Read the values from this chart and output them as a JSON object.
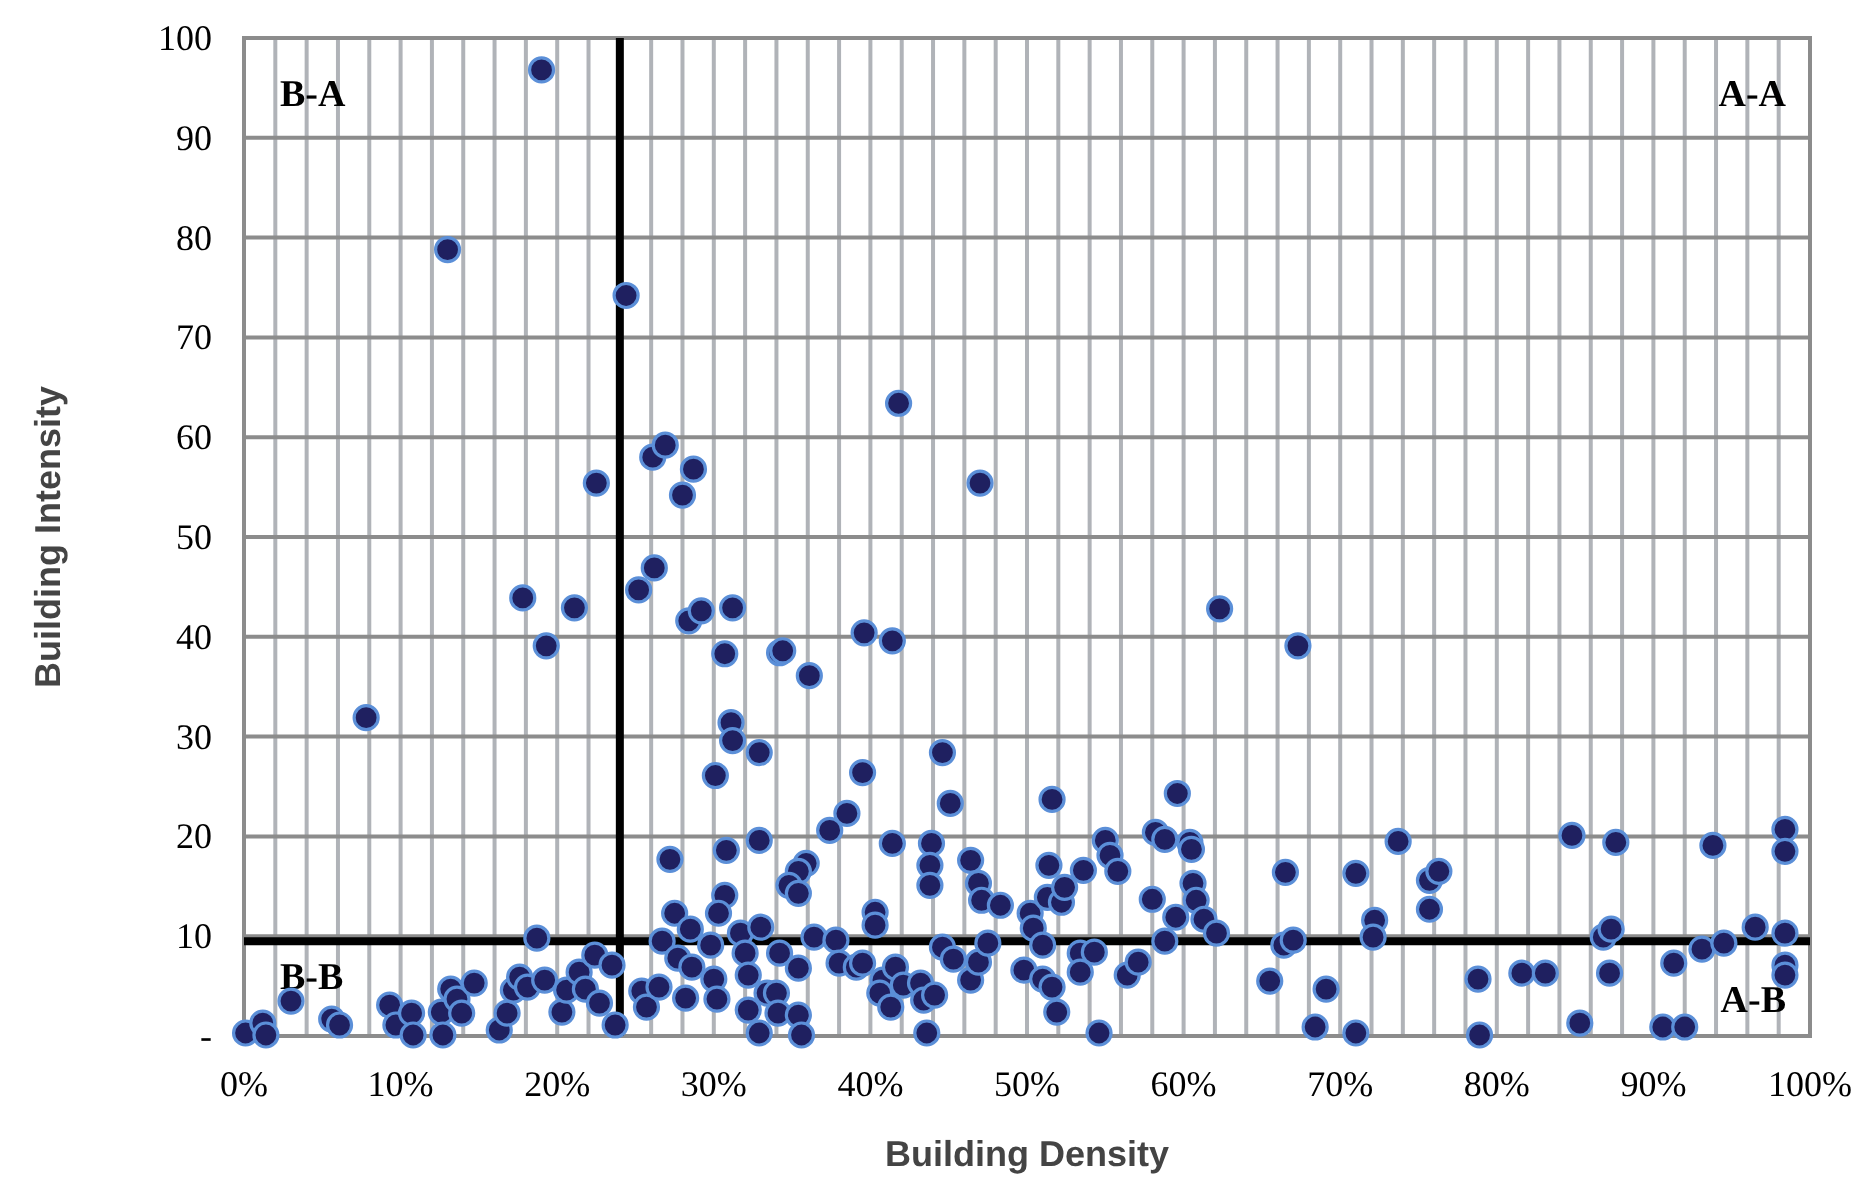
{
  "chart_data": {
    "type": "scatter",
    "xlabel": "Building Density",
    "ylabel": "Building Intensity",
    "xlim": [
      0,
      100
    ],
    "ylim": [
      0,
      100
    ],
    "xticks": [
      {
        "value": 0,
        "label": "0%"
      },
      {
        "value": 2,
        "label": null
      },
      {
        "value": 4,
        "label": null
      },
      {
        "value": 6,
        "label": null
      },
      {
        "value": 8,
        "label": null
      },
      {
        "value": 10,
        "label": "10%"
      },
      {
        "value": 12,
        "label": null
      },
      {
        "value": 14,
        "label": null
      },
      {
        "value": 16,
        "label": null
      },
      {
        "value": 18,
        "label": null
      },
      {
        "value": 20,
        "label": "20%"
      },
      {
        "value": 22,
        "label": null
      },
      {
        "value": 24,
        "label": null
      },
      {
        "value": 26,
        "label": null
      },
      {
        "value": 28,
        "label": null
      },
      {
        "value": 30,
        "label": "30%"
      },
      {
        "value": 32,
        "label": null
      },
      {
        "value": 34,
        "label": null
      },
      {
        "value": 36,
        "label": null
      },
      {
        "value": 38,
        "label": null
      },
      {
        "value": 40,
        "label": "40%"
      },
      {
        "value": 42,
        "label": null
      },
      {
        "value": 44,
        "label": null
      },
      {
        "value": 46,
        "label": null
      },
      {
        "value": 48,
        "label": null
      },
      {
        "value": 50,
        "label": "50%"
      },
      {
        "value": 52,
        "label": null
      },
      {
        "value": 54,
        "label": null
      },
      {
        "value": 56,
        "label": null
      },
      {
        "value": 58,
        "label": null
      },
      {
        "value": 60,
        "label": "60%"
      },
      {
        "value": 62,
        "label": null
      },
      {
        "value": 64,
        "label": null
      },
      {
        "value": 66,
        "label": null
      },
      {
        "value": 68,
        "label": null
      },
      {
        "value": 70,
        "label": "70%"
      },
      {
        "value": 72,
        "label": null
      },
      {
        "value": 74,
        "label": null
      },
      {
        "value": 76,
        "label": null
      },
      {
        "value": 78,
        "label": null
      },
      {
        "value": 80,
        "label": "80%"
      },
      {
        "value": 82,
        "label": null
      },
      {
        "value": 84,
        "label": null
      },
      {
        "value": 86,
        "label": null
      },
      {
        "value": 88,
        "label": null
      },
      {
        "value": 90,
        "label": "90%"
      },
      {
        "value": 92,
        "label": null
      },
      {
        "value": 94,
        "label": null
      },
      {
        "value": 96,
        "label": null
      },
      {
        "value": 98,
        "label": null
      },
      {
        "value": 100,
        "label": "100%"
      }
    ],
    "yticks": [
      {
        "value": 0,
        "label": "-"
      },
      10,
      20,
      30,
      40,
      50,
      60,
      70,
      80,
      90,
      100
    ],
    "grid": true,
    "marker": "circle",
    "ref_lines": [
      {
        "axis": "x",
        "value": 24,
        "color": "#000000"
      },
      {
        "axis": "y",
        "value": 9.5,
        "color": "#000000"
      }
    ],
    "annotations": [
      "B-A",
      "A-A",
      "B-B",
      "A-B"
    ],
    "series": [
      {
        "color": "#1f2060",
        "x": [
          19.0,
          13.0,
          24.4,
          41.8,
          26.1,
          26.9,
          28.7,
          28.0,
          22.5,
          47.0,
          0.1,
          1.2,
          1.4,
          3.0,
          5.6,
          6.1,
          7.8,
          9.3,
          9.7,
          10.7,
          10.8,
          12.6,
          12.7,
          13.2,
          13.6,
          13.9,
          14.7,
          16.3,
          16.8,
          17.2,
          17.6,
          17.8,
          18.1,
          18.7,
          19.2,
          19.3,
          20.3,
          20.6,
          21.1,
          21.4,
          21.8,
          22.4,
          22.7,
          23.5,
          23.7,
          25.2,
          26.2,
          25.4,
          25.7,
          26.5,
          26.7,
          27.2,
          27.5,
          27.7,
          28.2,
          28.5,
          28.6,
          28.4,
          29.2,
          31.2,
          30.7,
          31.1,
          31.2,
          30.1,
          30.8,
          30.7,
          30.3,
          29.8,
          30.0,
          30.2,
          31.7,
          32.0,
          32.2,
          32.2,
          32.9,
          32.9,
          34.2,
          34.4,
          36.1,
          39.6,
          41.4,
          39.5,
          38.5,
          37.4,
          35.9,
          35.4,
          34.8,
          35.4,
          41.4,
          40.3,
          40.3,
          33.0,
          34.2,
          35.4,
          36.4,
          33.4,
          34.0,
          34.1,
          35.4,
          32.9,
          35.6,
          37.8,
          38.0,
          39.1,
          39.5,
          40.8,
          40.6,
          41.3,
          41.6,
          42.1,
          43.2,
          43.4,
          44.1,
          43.6,
          43.9,
          43.8,
          43.8,
          44.6,
          45.1,
          44.6,
          45.3,
          46.4,
          46.4,
          46.9,
          47.1,
          48.3,
          46.9,
          47.5,
          49.8,
          50.2,
          50.4,
          51.0,
          51.3,
          51.4,
          51.6,
          51.0,
          51.6,
          51.9,
          52.2,
          52.4,
          53.6,
          53.4,
          53.4,
          54.3,
          54.6,
          55.0,
          55.3,
          55.8,
          56.4,
          57.1,
          58.0,
          58.2,
          58.8,
          58.8,
          59.5,
          59.6,
          60.4,
          60.5,
          60.6,
          60.8,
          61.3,
          62.1,
          62.3,
          65.5,
          66.5,
          66.4,
          67.0,
          67.3,
          68.4,
          69.1,
          71.0,
          71.0,
          72.2,
          72.1,
          73.7,
          75.7,
          75.7,
          76.3,
          78.8,
          78.9,
          81.6,
          83.1,
          84.8,
          85.3,
          86.8,
          87.3,
          87.2,
          87.6,
          90.6,
          92.0,
          91.3,
          93.1,
          93.8,
          94.5,
          96.5,
          98.4,
          98.4,
          98.4,
          98.4,
          98.4
        ],
        "values": [
          96.8,
          78.8,
          74.2,
          63.4,
          58,
          59.2,
          56.8,
          54.2,
          55.4,
          55.4,
          0.3,
          1.3,
          0.1,
          3.5,
          1.7,
          1.1,
          31.9,
          3.1,
          1.1,
          2.3,
          0.1,
          2.4,
          0.1,
          4.7,
          3.7,
          2.3,
          5.3,
          0.6,
          2.3,
          4.6,
          5.9,
          43.9,
          4.9,
          9.8,
          5.6,
          39.1,
          2.4,
          4.6,
          42.9,
          6.4,
          4.7,
          8.1,
          3.3,
          7.1,
          1.1,
          44.7,
          46.9,
          4.5,
          2.9,
          4.9,
          9.5,
          17.7,
          12.3,
          7.8,
          3.8,
          10.7,
          6.9,
          41.6,
          42.6,
          42.9,
          38.3,
          31.4,
          29.6,
          26.1,
          18.6,
          14.1,
          12.3,
          9.1,
          5.7,
          3.7,
          10.3,
          8.3,
          6.1,
          2.6,
          28.4,
          19.6,
          38.4,
          38.6,
          36.1,
          40.4,
          39.6,
          26.4,
          22.3,
          20.6,
          17.3,
          16.5,
          15.1,
          14.3,
          19.3,
          12.4,
          11.1,
          10.9,
          8.3,
          6.8,
          9.9,
          4.3,
          4.3,
          2.3,
          2.1,
          0.3,
          0.1,
          9.6,
          7.3,
          6.9,
          7.3,
          5.6,
          4.3,
          2.9,
          6.9,
          5.1,
          5.3,
          3.6,
          4.1,
          0.3,
          19.3,
          17.1,
          15.1,
          28.4,
          23.3,
          8.9,
          7.7,
          5.6,
          17.6,
          15.3,
          13.6,
          13.1,
          7.4,
          9.3,
          6.6,
          12.3,
          10.8,
          9.1,
          13.9,
          17.1,
          23.7,
          5.7,
          4.9,
          2.4,
          13.4,
          14.9,
          16.6,
          8.3,
          6.4,
          8.4,
          0.3,
          19.6,
          18.1,
          16.5,
          6.1,
          7.4,
          13.7,
          20.4,
          19.7,
          9.5,
          11.9,
          24.3,
          19.4,
          18.7,
          15.3,
          13.6,
          11.7,
          10.3,
          42.8,
          5.5,
          16.4,
          9.1,
          9.6,
          39.1,
          0.9,
          4.7,
          16.3,
          0.3,
          11.6,
          9.9,
          19.5,
          12.7,
          15.6,
          16.5,
          5.7,
          0.1,
          6.3,
          6.3,
          20.1,
          1.3,
          9.9,
          10.7,
          6.3,
          19.4,
          0.9,
          0.9,
          7.3,
          8.7,
          19.1,
          9.3,
          10.9,
          20.7,
          18.5,
          10.3,
          7.1,
          6.1
        ]
      }
    ]
  }
}
